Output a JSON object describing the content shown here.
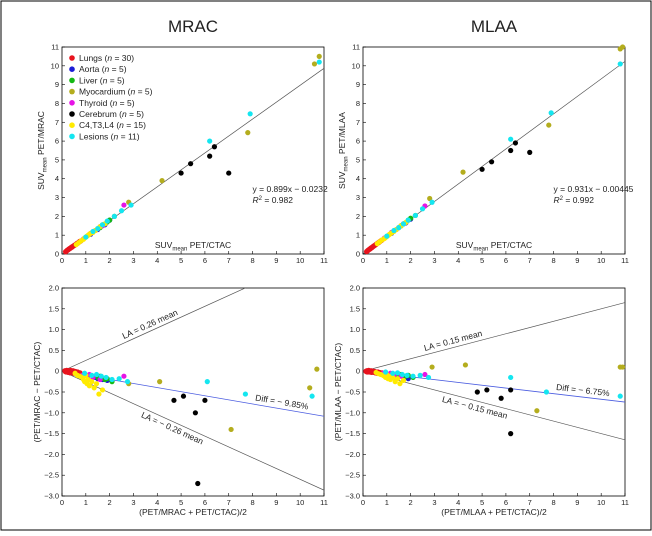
{
  "chart_data": [
    {
      "type": "scatter",
      "title": "MRAC",
      "xlabel": {
        "main": "SUV",
        "sub": "mean",
        "rest": " PET/CTAC"
      },
      "ylabel": {
        "main": "SUV",
        "sub": "mean",
        "rest": " PET/MRAC"
      },
      "xlim": [
        0,
        11
      ],
      "ylim": [
        0,
        11
      ],
      "xticks": [
        0,
        1,
        2,
        3,
        4,
        5,
        6,
        7,
        8,
        9,
        10,
        11
      ],
      "yticks": [
        0,
        1,
        2,
        3,
        4,
        5,
        6,
        7,
        8,
        9,
        10,
        11
      ],
      "fit": {
        "slope": 0.899,
        "intercept": -0.0232
      },
      "annotations": [
        "y = 0.899x − 0.0232",
        "R",
        "2",
        " = 0.982"
      ],
      "legend": [
        {
          "label": "Lungs",
          "n": "30",
          "color": "#e8141e"
        },
        {
          "label": "Aorta",
          "n": "5",
          "color": "#1c1cd6"
        },
        {
          "label": "Liver",
          "n": "5",
          "color": "#14b814"
        },
        {
          "label": "Myocardium",
          "n": "5",
          "color": "#b4ad1e"
        },
        {
          "label": "Thyroid",
          "n": "5",
          "color": "#e614e6"
        },
        {
          "label": "Cerebrum",
          "n": "5",
          "color": "#000000"
        },
        {
          "label": "C4,T3,L4",
          "n": "15",
          "color": "#ffea00"
        },
        {
          "label": "Lesions",
          "n": "11",
          "color": "#14e6f0"
        }
      ],
      "series": [
        {
          "name": "Lungs",
          "x": [
            0.15,
            0.18,
            0.2,
            0.22,
            0.25,
            0.27,
            0.28,
            0.3,
            0.32,
            0.33,
            0.35,
            0.36,
            0.38,
            0.4,
            0.42,
            0.43,
            0.45,
            0.47,
            0.5,
            0.52,
            0.55,
            0.57,
            0.6,
            0.62,
            0.65,
            0.68,
            0.7,
            0.73,
            0.75,
            0.8
          ],
          "y": [
            0.12,
            0.15,
            0.17,
            0.2,
            0.22,
            0.24,
            0.25,
            0.27,
            0.29,
            0.3,
            0.31,
            0.32,
            0.34,
            0.36,
            0.37,
            0.38,
            0.4,
            0.42,
            0.44,
            0.46,
            0.48,
            0.5,
            0.53,
            0.55,
            0.57,
            0.6,
            0.62,
            0.65,
            0.67,
            0.7
          ]
        },
        {
          "name": "Aorta",
          "x": [
            1.2,
            1.5,
            1.6,
            1.8,
            2.0
          ],
          "y": [
            1.05,
            1.3,
            1.45,
            1.55,
            1.8
          ]
        },
        {
          "name": "Liver",
          "x": [
            1.6,
            1.7,
            1.9,
            2.0,
            2.2
          ],
          "y": [
            1.4,
            1.55,
            1.7,
            1.8,
            2.0
          ]
        },
        {
          "name": "Myocardium",
          "x": [
            2.8,
            4.2,
            7.8,
            10.6,
            10.8
          ],
          "y": [
            2.75,
            3.9,
            6.45,
            10.1,
            10.5
          ]
        },
        {
          "name": "Thyroid",
          "x": [
            0.9,
            1.2,
            1.4,
            1.7,
            2.6
          ],
          "y": [
            0.8,
            1.1,
            1.25,
            1.5,
            2.6
          ]
        },
        {
          "name": "Cerebrum",
          "x": [
            5.0,
            5.4,
            6.2,
            6.4,
            7.0
          ],
          "y": [
            4.3,
            4.8,
            5.2,
            5.7,
            4.3
          ]
        },
        {
          "name": "C4,T3,L4",
          "x": [
            0.6,
            0.7,
            0.8,
            0.9,
            0.95,
            1.0,
            1.05,
            1.1,
            1.15,
            1.2,
            1.3,
            1.4,
            1.5,
            1.6,
            1.8
          ],
          "y": [
            0.5,
            0.6,
            0.7,
            0.78,
            0.85,
            0.9,
            0.95,
            1.0,
            1.05,
            1.1,
            1.15,
            1.25,
            1.35,
            1.45,
            1.6
          ]
        },
        {
          "name": "Lesions",
          "x": [
            1.0,
            1.3,
            1.5,
            1.7,
            1.9,
            2.2,
            2.5,
            2.9,
            6.2,
            7.9,
            10.8
          ],
          "y": [
            0.9,
            1.2,
            1.35,
            1.55,
            1.75,
            2.0,
            2.3,
            2.6,
            6.0,
            7.45,
            10.2
          ]
        }
      ]
    },
    {
      "type": "scatter",
      "title": "MLAA",
      "xlabel": {
        "main": "SUV",
        "sub": "mean",
        "rest": " PET/CTAC"
      },
      "ylabel": {
        "main": "SUV",
        "sub": "mean",
        "rest": " PET/MLAA"
      },
      "xlim": [
        0,
        11
      ],
      "ylim": [
        0,
        11
      ],
      "xticks": [
        0,
        1,
        2,
        3,
        4,
        5,
        6,
        7,
        8,
        9,
        10,
        11
      ],
      "yticks": [
        0,
        1,
        2,
        3,
        4,
        5,
        6,
        7,
        8,
        9,
        10,
        11
      ],
      "fit": {
        "slope": 0.931,
        "intercept": -0.00445
      },
      "annotations": [
        "y = 0.931x − 0.00445",
        "R",
        "2",
        " = 0.992"
      ],
      "series": [
        {
          "name": "Lungs",
          "x": [
            0.15,
            0.18,
            0.2,
            0.22,
            0.25,
            0.27,
            0.28,
            0.3,
            0.32,
            0.33,
            0.35,
            0.36,
            0.38,
            0.4,
            0.42,
            0.43,
            0.45,
            0.47,
            0.5,
            0.52,
            0.55,
            0.57,
            0.6,
            0.62,
            0.65,
            0.68,
            0.7,
            0.73,
            0.75,
            0.8
          ],
          "y": [
            0.13,
            0.16,
            0.18,
            0.21,
            0.23,
            0.25,
            0.26,
            0.28,
            0.3,
            0.31,
            0.32,
            0.34,
            0.35,
            0.37,
            0.39,
            0.4,
            0.42,
            0.44,
            0.46,
            0.48,
            0.51,
            0.53,
            0.56,
            0.58,
            0.6,
            0.63,
            0.65,
            0.68,
            0.7,
            0.74
          ]
        },
        {
          "name": "Aorta",
          "x": [
            1.2,
            1.5,
            1.6,
            1.8,
            2.0
          ],
          "y": [
            1.1,
            1.4,
            1.5,
            1.65,
            1.85
          ]
        },
        {
          "name": "Liver",
          "x": [
            1.6,
            1.7,
            1.9,
            2.0,
            2.2
          ],
          "y": [
            1.5,
            1.6,
            1.8,
            1.9,
            2.05
          ]
        },
        {
          "name": "Myocardium",
          "x": [
            2.8,
            4.2,
            7.8,
            10.8,
            10.9
          ],
          "y": [
            2.95,
            4.35,
            6.85,
            10.9,
            11.0
          ]
        },
        {
          "name": "Thyroid",
          "x": [
            0.9,
            1.2,
            1.4,
            1.7,
            2.6
          ],
          "y": [
            0.85,
            1.15,
            1.3,
            1.6,
            2.55
          ]
        },
        {
          "name": "Cerebrum",
          "x": [
            5.0,
            5.4,
            6.2,
            6.4,
            7.0
          ],
          "y": [
            4.5,
            4.9,
            5.5,
            5.9,
            5.4
          ]
        },
        {
          "name": "C4,T3,L4",
          "x": [
            0.6,
            0.7,
            0.8,
            0.9,
            0.95,
            1.0,
            1.05,
            1.1,
            1.15,
            1.2,
            1.3,
            1.4,
            1.5,
            1.6,
            1.8
          ],
          "y": [
            0.55,
            0.65,
            0.75,
            0.82,
            0.88,
            0.93,
            0.98,
            1.03,
            1.08,
            1.12,
            1.2,
            1.3,
            1.4,
            1.5,
            1.68
          ]
        },
        {
          "name": "Lesions",
          "x": [
            1.0,
            1.3,
            1.5,
            1.7,
            1.9,
            2.2,
            2.5,
            2.9,
            6.2,
            7.9,
            10.8
          ],
          "y": [
            0.95,
            1.25,
            1.4,
            1.6,
            1.8,
            2.05,
            2.4,
            2.75,
            6.1,
            7.5,
            10.1
          ]
        }
      ]
    },
    {
      "type": "scatter",
      "xlabel": "(PET/MRAC + PET/CTAC)/2",
      "ylabel": "(PET/MRAC − PET/CTAC)",
      "xlim": [
        0,
        11
      ],
      "ylim": [
        -3.0,
        2.0
      ],
      "xticks": [
        0,
        1,
        2,
        3,
        4,
        5,
        6,
        7,
        8,
        9,
        10,
        11
      ],
      "yticks": [
        2.0,
        1.5,
        1.0,
        0.5,
        0,
        -0.5,
        -1.0,
        -1.5,
        -2.0,
        -2.5,
        -3.0
      ],
      "ytick_labels": [
        "2.0",
        "1.5",
        "1.0",
        "0.5",
        "0",
        "−0.5",
        "−1.0",
        "−1.5",
        "−2.0",
        "−2.5",
        "−3.0"
      ],
      "lines": {
        "diff": -0.0985,
        "la": 0.26
      },
      "annotations": [
        "LA = 0.26 mean",
        "Diff = − 9.85%",
        "LA = − 0.26 mean"
      ],
      "series": [
        {
          "name": "Lungs",
          "x": [
            0.12,
            0.14,
            0.16,
            0.18,
            0.2,
            0.22,
            0.24,
            0.26,
            0.28,
            0.3,
            0.32,
            0.34,
            0.36,
            0.38,
            0.4,
            0.42,
            0.44,
            0.46,
            0.48,
            0.5,
            0.52,
            0.55,
            0.58,
            0.6,
            0.63,
            0.66,
            0.7,
            0.73,
            0.76,
            0.8
          ],
          "y": [
            0.01,
            -0.01,
            0.0,
            -0.02,
            0.02,
            -0.01,
            0.0,
            -0.03,
            0.01,
            -0.02,
            0.0,
            -0.04,
            0.02,
            -0.01,
            -0.03,
            0.0,
            -0.02,
            0.01,
            -0.05,
            -0.02,
            0.0,
            -0.04,
            -0.01,
            -0.06,
            -0.03,
            -0.02,
            -0.05,
            -0.07,
            -0.04,
            -0.08
          ]
        },
        {
          "name": "Aorta",
          "x": [
            1.1,
            1.4,
            1.5,
            1.7,
            1.9
          ],
          "y": [
            -0.1,
            -0.15,
            -0.18,
            -0.2,
            -0.22
          ]
        },
        {
          "name": "Liver",
          "x": [
            1.5,
            1.6,
            1.8,
            1.9,
            2.1
          ],
          "y": [
            -0.15,
            -0.12,
            -0.2,
            -0.18,
            -0.25
          ]
        },
        {
          "name": "Myocardium",
          "x": [
            2.8,
            4.1,
            7.1,
            10.4,
            10.7
          ],
          "y": [
            -0.3,
            -0.25,
            -1.4,
            -0.4,
            0.05
          ]
        },
        {
          "name": "Thyroid",
          "x": [
            0.85,
            1.15,
            1.3,
            1.6,
            2.6
          ],
          "y": [
            -0.1,
            -0.08,
            -0.15,
            -0.2,
            -0.12
          ]
        },
        {
          "name": "Cerebrum",
          "x": [
            4.7,
            5.1,
            5.7,
            6.0,
            5.6
          ],
          "y": [
            -0.7,
            -0.6,
            -2.7,
            -0.7,
            -1.0
          ]
        },
        {
          "name": "C4,T3,L4",
          "x": [
            0.55,
            0.65,
            0.75,
            0.85,
            0.9,
            0.95,
            1.0,
            1.05,
            1.1,
            1.15,
            1.25,
            1.35,
            1.45,
            1.55,
            1.7
          ],
          "y": [
            -0.05,
            -0.1,
            -0.12,
            -0.15,
            -0.2,
            -0.25,
            -0.1,
            -0.3,
            -0.2,
            -0.35,
            -0.25,
            -0.4,
            -0.3,
            -0.55,
            -0.45
          ]
        },
        {
          "name": "Lesions",
          "x": [
            0.95,
            1.25,
            1.45,
            1.65,
            1.85,
            2.1,
            2.4,
            2.75,
            6.1,
            7.7,
            10.5
          ],
          "y": [
            -0.05,
            -0.1,
            -0.08,
            -0.12,
            -0.15,
            -0.2,
            -0.18,
            -0.25,
            -0.25,
            -0.55,
            -0.6
          ]
        }
      ]
    },
    {
      "type": "scatter",
      "xlabel": "(PET/MLAA + PET/CTAC)/2",
      "ylabel": "(PET/MLAA − PET/CTAC)",
      "xlim": [
        0,
        11
      ],
      "ylim": [
        -3.0,
        2.0
      ],
      "xticks": [
        0,
        1,
        2,
        3,
        4,
        5,
        6,
        7,
        8,
        9,
        10,
        11
      ],
      "yticks": [
        2.0,
        1.5,
        1.0,
        0.5,
        0,
        -0.5,
        -1.0,
        -1.5,
        -2.0,
        -2.5,
        -3.0
      ],
      "ytick_labels": [
        "2.0",
        "1.5",
        "1.0",
        "0.5",
        "0",
        "−0.5",
        "−1.0",
        "−1.5",
        "−2.0",
        "−2.5",
        "−3.0"
      ],
      "lines": {
        "diff": -0.0675,
        "la": 0.15
      },
      "annotations": [
        "LA = 0.15 mean",
        "Diff = − 6.75%",
        "LA = − 0.15 mean"
      ],
      "series": [
        {
          "name": "Lungs",
          "x": [
            0.12,
            0.14,
            0.16,
            0.18,
            0.2,
            0.22,
            0.24,
            0.26,
            0.28,
            0.3,
            0.32,
            0.34,
            0.36,
            0.38,
            0.4,
            0.42,
            0.44,
            0.46,
            0.48,
            0.5,
            0.52,
            0.55,
            0.58,
            0.6,
            0.63,
            0.66,
            0.7,
            0.73,
            0.76,
            0.8
          ],
          "y": [
            0.0,
            -0.01,
            0.01,
            -0.02,
            0.0,
            -0.01,
            0.02,
            -0.02,
            0.0,
            -0.01,
            -0.02,
            0.01,
            -0.03,
            0.0,
            -0.02,
            -0.01,
            0.0,
            -0.03,
            -0.02,
            -0.01,
            -0.04,
            -0.02,
            -0.03,
            -0.05,
            -0.02,
            -0.04,
            -0.03,
            -0.05,
            -0.06,
            -0.04
          ]
        },
        {
          "name": "Aorta",
          "x": [
            1.1,
            1.4,
            1.5,
            1.7,
            1.9
          ],
          "y": [
            -0.08,
            -0.1,
            -0.12,
            -0.15,
            -0.18
          ]
        },
        {
          "name": "Liver",
          "x": [
            1.5,
            1.6,
            1.8,
            1.9,
            2.1
          ],
          "y": [
            -0.1,
            -0.08,
            -0.12,
            -0.1,
            -0.15
          ]
        },
        {
          "name": "Myocardium",
          "x": [
            2.9,
            4.3,
            7.3,
            10.8,
            10.9
          ],
          "y": [
            0.1,
            0.15,
            -0.95,
            0.1,
            0.1
          ]
        },
        {
          "name": "Thyroid",
          "x": [
            0.85,
            1.15,
            1.3,
            1.6,
            2.6
          ],
          "y": [
            -0.05,
            -0.05,
            -0.1,
            -0.12,
            -0.08
          ]
        },
        {
          "name": "Cerebrum",
          "x": [
            4.8,
            5.2,
            5.8,
            6.2,
            6.2
          ],
          "y": [
            -0.5,
            -0.45,
            -0.65,
            -0.45,
            -1.5
          ]
        },
        {
          "name": "C4,T3,L4",
          "x": [
            0.55,
            0.65,
            0.75,
            0.85,
            0.9,
            0.95,
            1.0,
            1.05,
            1.1,
            1.15,
            1.25,
            1.35,
            1.45,
            1.55,
            1.7
          ],
          "y": [
            -0.03,
            -0.06,
            -0.08,
            -0.1,
            -0.12,
            -0.15,
            -0.08,
            -0.18,
            -0.12,
            -0.2,
            -0.15,
            -0.25,
            -0.18,
            -0.3,
            -0.22
          ]
        },
        {
          "name": "Lesions",
          "x": [
            0.95,
            1.25,
            1.45,
            1.65,
            1.85,
            2.1,
            2.4,
            2.75,
            6.2,
            7.7,
            10.8
          ],
          "y": [
            -0.02,
            -0.05,
            -0.04,
            -0.08,
            -0.1,
            -0.12,
            -0.1,
            -0.15,
            -0.15,
            -0.5,
            -0.6
          ]
        }
      ]
    }
  ]
}
